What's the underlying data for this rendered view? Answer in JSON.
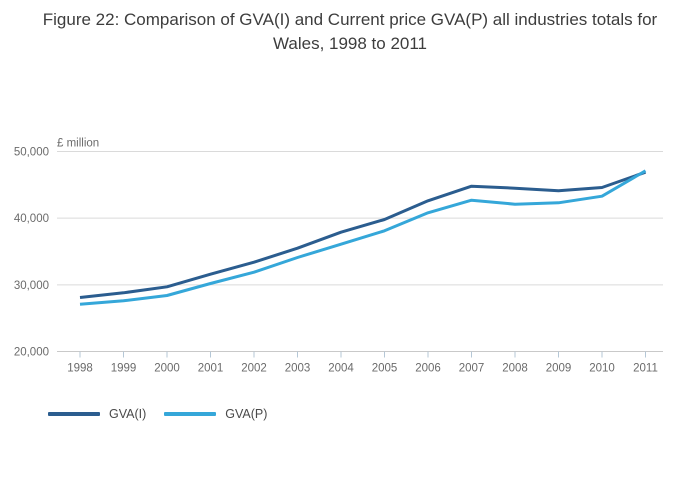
{
  "title": "Figure 22: Comparison of GVA(I) and Current price GVA(P) all industries totals for Wales, 1998 to 2011",
  "chart_data": {
    "type": "line",
    "title": "Figure 22: Comparison of GVA(I) and Current price GVA(P) all industries totals for Wales, 1998 to 2011",
    "unit_label": "£ million",
    "xlabel": "",
    "ylabel": "£ million",
    "categories": [
      "1998",
      "1999",
      "2000",
      "2001",
      "2002",
      "2003",
      "2004",
      "2005",
      "2006",
      "2007",
      "2008",
      "2009",
      "2010",
      "2011"
    ],
    "series": [
      {
        "name": "GVA(I)",
        "color": "#2B5D8F",
        "values": [
          28100,
          28800,
          29700,
          31600,
          33400,
          35500,
          37900,
          39800,
          42600,
          44800,
          44500,
          44100,
          44600,
          46900
        ]
      },
      {
        "name": "GVA(P)",
        "color": "#35A7D9",
        "values": [
          27100,
          27600,
          28400,
          30200,
          31900,
          34100,
          36100,
          38100,
          40800,
          42700,
          42100,
          42300,
          43300,
          47100
        ]
      }
    ],
    "ylim": [
      20000,
      50000
    ],
    "yticks": [
      20000,
      30000,
      40000,
      50000
    ],
    "ytick_labels": [
      "20,000",
      "30,000",
      "40,000",
      "50,000"
    ],
    "grid": true,
    "legend_position": "bottom-left"
  },
  "colors": {
    "background": "#ffffff",
    "grid": "#dadada",
    "axis": "#c9c9c9",
    "tick": "#b5c7d6",
    "axis_text": "#6b6b6b",
    "title_text": "#3d3d3d",
    "legend_text": "#4a4a4a"
  }
}
